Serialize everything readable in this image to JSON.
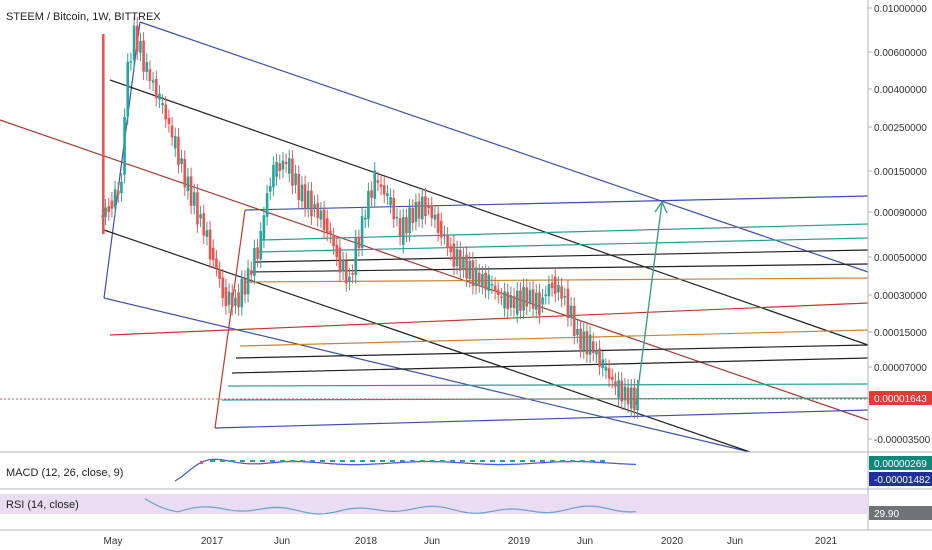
{
  "header": {
    "title": "STEEM / Bitcoin, 1W, BITTREX"
  },
  "colors": {
    "up": "#26a69a",
    "down": "#ef5350",
    "pitchfork_blue": "#3f4fae",
    "pitchfork_red": "#a33b32",
    "pitchfork_black": "#222222",
    "fib_teal": "#2a9d8f",
    "fib_orange": "#c8843a",
    "fib_red": "#c0392b",
    "arrow": "#3a9e8a",
    "price_line": "#e0503f",
    "macd_line": "#e0503f",
    "signal_line": "#2962ff",
    "rsi_line": "#6aa3c8",
    "rsi_band": "#e9dcf3",
    "badge_teal": "#0b8a7a",
    "badge_blue": "#1f2f9c",
    "badge_red": "#e53935",
    "badge_gray": "#6f7277"
  },
  "chart_data": {
    "type": "line",
    "title": "STEEM / Bitcoin, 1W, BITTREX",
    "xlabel": "",
    "ylabel": "",
    "scale": "log",
    "x": [
      "2016-04",
      "2016-05",
      "2016-06",
      "2016-07",
      "2016-08",
      "2016-09",
      "2016-10",
      "2016-11",
      "2016-12",
      "2017-01",
      "2017-02",
      "2017-03",
      "2017-04",
      "2017-05",
      "2017-06",
      "2017-07",
      "2017-08",
      "2017-09",
      "2017-10",
      "2017-11",
      "2017-12",
      "2018-01",
      "2018-02",
      "2018-03",
      "2018-04",
      "2018-05",
      "2018-06",
      "2018-07",
      "2018-08",
      "2018-09",
      "2018-10",
      "2018-11",
      "2018-12",
      "2019-01",
      "2019-02",
      "2019-03",
      "2019-04",
      "2019-05",
      "2019-06",
      "2019-07",
      "2019-08",
      "2019-09",
      "2019-10"
    ],
    "series": [
      {
        "values": [
          0.00038,
          0.00055,
          0.0065,
          0.0035,
          0.0022,
          0.0012,
          0.0006,
          0.00035,
          0.00019,
          9e-05,
          8e-05,
          0.00012,
          0.00022,
          0.0007,
          0.0008,
          0.0005,
          0.0004,
          0.0003,
          0.00017,
          0.00011,
          0.00028,
          0.0006,
          0.00045,
          0.00025,
          0.00035,
          0.0004,
          0.00028,
          0.00018,
          0.00015,
          0.00012,
          0.00011,
          8.5e-05,
          8e-05,
          9e-05,
          7.8e-05,
          0.00011,
          8.5e-05,
          4.5e-05,
          4e-05,
          2.8e-05,
          2e-05,
          1.7e-05,
          1.64e-05
        ]
      }
    ],
    "x_tick_labels": [
      "May",
      "2017",
      "Jun",
      "2018",
      "Jun",
      "2019",
      "Jun",
      "2020",
      "Jun",
      "2021"
    ],
    "y_tick_labels": [
      "0.01000000",
      "0.00600000",
      "0.00400000",
      "0.00250000",
      "0.00150000",
      "0.00090000",
      "0.00050000",
      "0.00030000",
      "0.00015000",
      "0.00007000",
      "0.00001643",
      "-0.00003500"
    ],
    "last_price": "0.00001643",
    "grid": false,
    "legend": "none",
    "indicators": [
      {
        "name": "MACD (12, 26, close, 9)",
        "values": [
          "0.00000269",
          "-0.00001482"
        ]
      },
      {
        "name": "RSI (14, close)",
        "value": "29.90"
      }
    ]
  }
}
